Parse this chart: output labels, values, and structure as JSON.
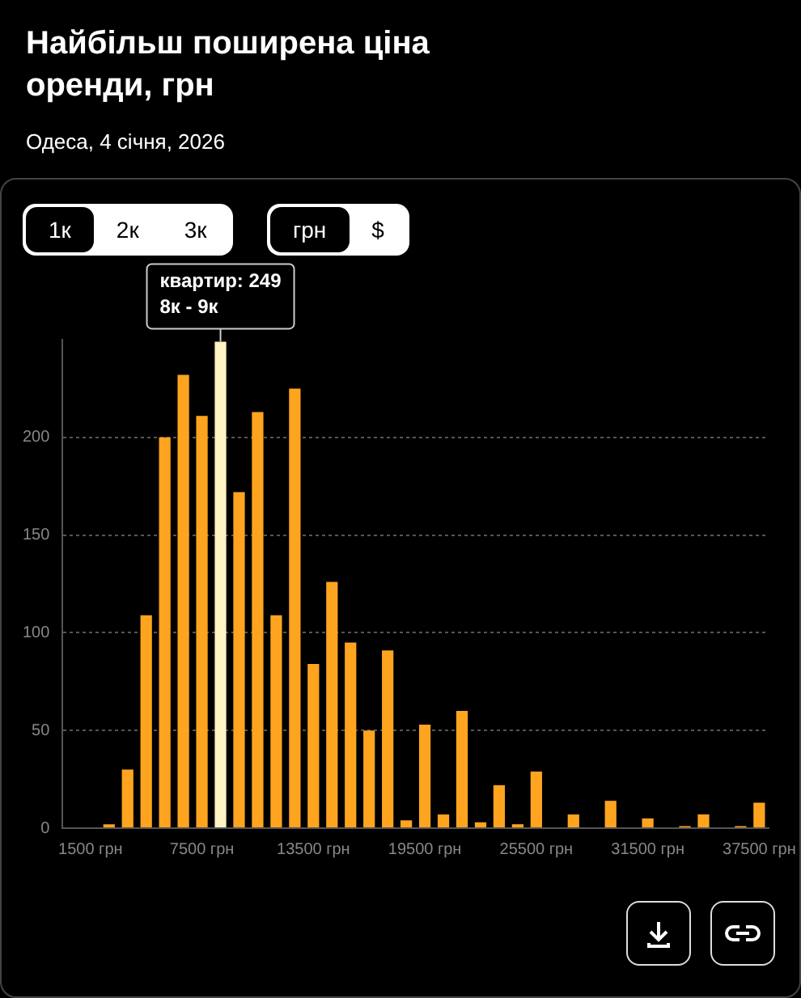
{
  "chart_data": {
    "type": "histogram",
    "title": "Найбільш поширена ціна оренди, грн",
    "subtitle": "Одеса, 4 січня, 2026",
    "bins": [
      2000,
      3000,
      4000,
      5000,
      6000,
      7000,
      8000,
      9000,
      10000,
      11000,
      12000,
      13000,
      14000,
      15000,
      16000,
      17000,
      18000,
      19000,
      20000,
      21000,
      22000,
      23000,
      24000,
      25000,
      26000,
      27000,
      28000,
      29000,
      30000,
      31000,
      32000,
      33000,
      34000,
      35000,
      36000,
      37000,
      38000
    ],
    "values": [
      2,
      30,
      109,
      200,
      232,
      211,
      249,
      172,
      213,
      109,
      225,
      84,
      126,
      95,
      50,
      91,
      4,
      53,
      7,
      60,
      3,
      22,
      2,
      29,
      0,
      7,
      0,
      14,
      0,
      5,
      0,
      1,
      7,
      0,
      1,
      13
    ],
    "colors": [
      "#ffa41f",
      "#ffa41f",
      "#ffa41f",
      "#ffa41f",
      "#ffa41f",
      "#ffa41f",
      "#fff2c4",
      "#ffa41f",
      "#ffa41f",
      "#ffa41f",
      "#ffa41f",
      "#ffa41f",
      "#ffa41f",
      "#ffa41f",
      "#ffa41f",
      "#ffa41f",
      "#ffa41f",
      "#ffa41f",
      "#ffa41f",
      "#ffa41f",
      "#ffa41f",
      "#ffa41f",
      "#ffa41f",
      "#ffa41f",
      "#ffa41f",
      "#ffa41f",
      "#ffa41f",
      "#ffa41f",
      "#ffa41f",
      "#ffa41f",
      "#ffa41f",
      "#ffa41f",
      "#ffa41f",
      "#ffa41f",
      "#ffa41f",
      "#ffa41f"
    ],
    "xlim": [
      0,
      38000
    ],
    "xticks": [
      {
        "value": 1500,
        "label": "1500 грн"
      },
      {
        "value": 7500,
        "label": "7500 грн"
      },
      {
        "value": 13500,
        "label": "13500 грн"
      },
      {
        "value": 19500,
        "label": "19500 грн"
      },
      {
        "value": 25500,
        "label": "25500 грн"
      },
      {
        "value": 31500,
        "label": "31500 грн"
      },
      {
        "value": 37500,
        "label": "37500 грн"
      }
    ],
    "ylim": [
      0,
      250
    ],
    "yticks": [
      0,
      50,
      100,
      150,
      200
    ],
    "grid": "y",
    "legend": false,
    "annotations": [
      "1к",
      "2к",
      "3к",
      "грн",
      "$",
      {
        "text": "квартир: 249\n8к - 9к",
        "x": 8500,
        "y": 249
      }
    ]
  }
}
